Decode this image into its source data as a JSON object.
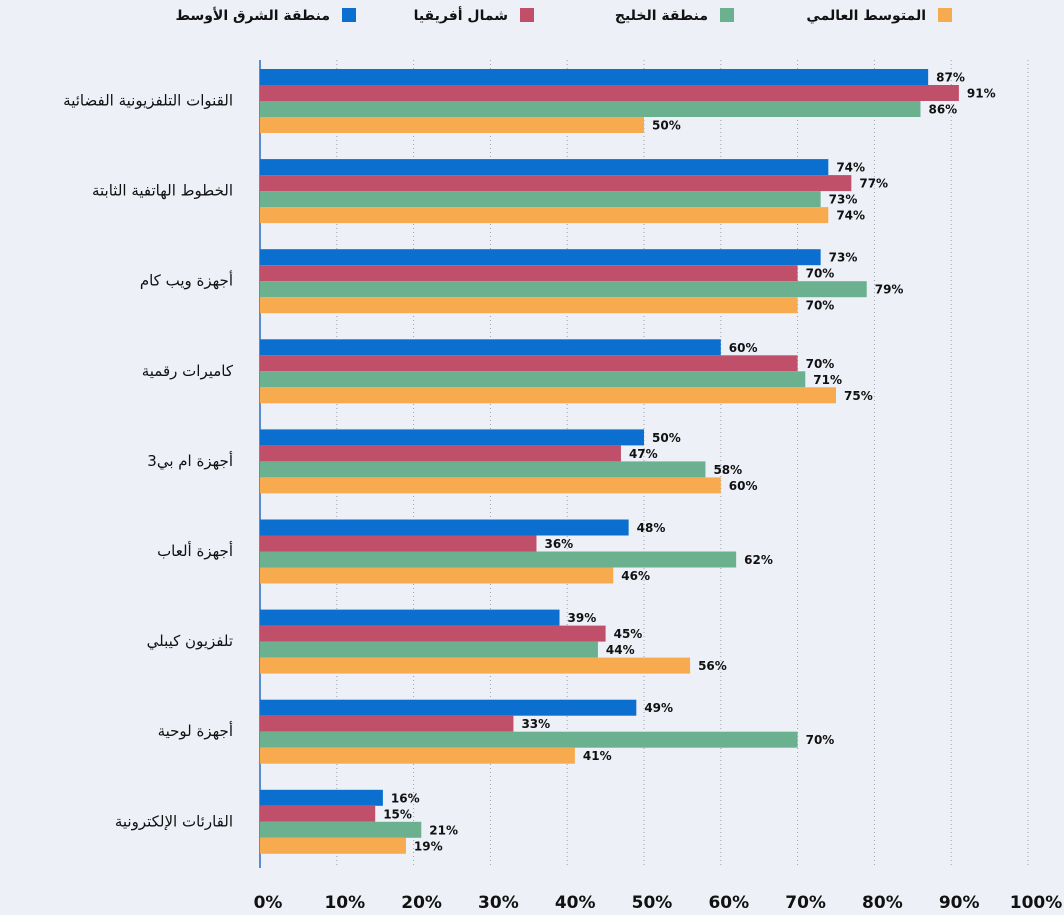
{
  "chart_data": {
    "type": "bar",
    "orientation": "horizontal",
    "categories": [
      "القنوات التلفزيونية الفضائية",
      "الخطوط الهاتفية الثابتة",
      "أجهزة ويب كام",
      "كاميرات رقمية",
      "أجهزة ام بي3",
      "أجهزة ألعاب",
      "تلفزيون كيبلي",
      "أجهزة لوحية",
      "القارئات الإلكترونية"
    ],
    "series": [
      {
        "name": "منطقة الشرق الأوسط",
        "color": "#0a6fce",
        "values": [
          87,
          74,
          73,
          60,
          50,
          48,
          39,
          49,
          16
        ],
        "value_labels": [
          "87%",
          "74%",
          "73%",
          "60%",
          "50%",
          "48%",
          "39%",
          "49%",
          "16%"
        ]
      },
      {
        "name": "شمال أفريقيا",
        "color": "#c0506a",
        "values": [
          91,
          77,
          70,
          70,
          47,
          36,
          45,
          33,
          15
        ],
        "value_labels": [
          "91%",
          "77%",
          "70%",
          "70%",
          "47%",
          "36%",
          "45%",
          "33%",
          "15%"
        ]
      },
      {
        "name": "منطقة الخليج",
        "color": "#6bb08f",
        "values": [
          86,
          73,
          79,
          71,
          58,
          62,
          44,
          70,
          21
        ],
        "value_labels": [
          "86%",
          "73%",
          "79%",
          "71%",
          "58%",
          "62%",
          "44%",
          "70%",
          "21%"
        ]
      },
      {
        "name": "المتوسط العالمي",
        "color": "#f7ab4e",
        "values": [
          50,
          74,
          70,
          75,
          60,
          46,
          56,
          41,
          19
        ],
        "value_labels": [
          "50%",
          "74%",
          "70%",
          "75%",
          "60%",
          "46%",
          "56%",
          "41%",
          "19%"
        ]
      }
    ],
    "xlim": [
      0,
      100
    ],
    "xticks": [
      {
        "value": 0,
        "label": "0%"
      },
      {
        "value": 10,
        "label": "10%"
      },
      {
        "value": 20,
        "label": "20%"
      },
      {
        "value": 30,
        "label": "30%"
      },
      {
        "value": 40,
        "label": "40%"
      },
      {
        "value": 50,
        "label": "50%"
      },
      {
        "value": 60,
        "label": "60%"
      },
      {
        "value": 70,
        "label": "70%"
      },
      {
        "value": 80,
        "label": "80%"
      },
      {
        "value": 90,
        "label": "90%"
      },
      {
        "value": 100,
        "label": "100%"
      }
    ],
    "grid": true,
    "legend": "top"
  }
}
